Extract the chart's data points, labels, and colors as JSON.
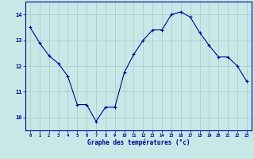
{
  "hours": [
    0,
    1,
    2,
    3,
    4,
    5,
    6,
    7,
    8,
    9,
    10,
    11,
    12,
    13,
    14,
    15,
    16,
    17,
    18,
    19,
    20,
    21,
    22,
    23
  ],
  "temperatures": [
    13.5,
    12.9,
    12.4,
    12.1,
    11.6,
    10.5,
    10.5,
    9.85,
    10.4,
    10.4,
    11.75,
    12.45,
    13.0,
    13.4,
    13.4,
    14.0,
    14.1,
    13.9,
    13.3,
    12.8,
    12.35,
    12.35,
    12.0,
    11.4
  ],
  "line_color": "#00008B",
  "marker": "+",
  "marker_color": "#00008B",
  "bg_color": "#c8e8e8",
  "grid_color": "#a8c8c8",
  "axis_color": "#00008B",
  "xlabel": "Graphe des températures (°c)",
  "xlabel_color": "#00008B",
  "ylabel_ticks": [
    10,
    11,
    12,
    13,
    14
  ],
  "xlim": [
    -0.5,
    23.5
  ],
  "ylim": [
    9.5,
    14.5
  ],
  "tick_label_color": "#00008B"
}
